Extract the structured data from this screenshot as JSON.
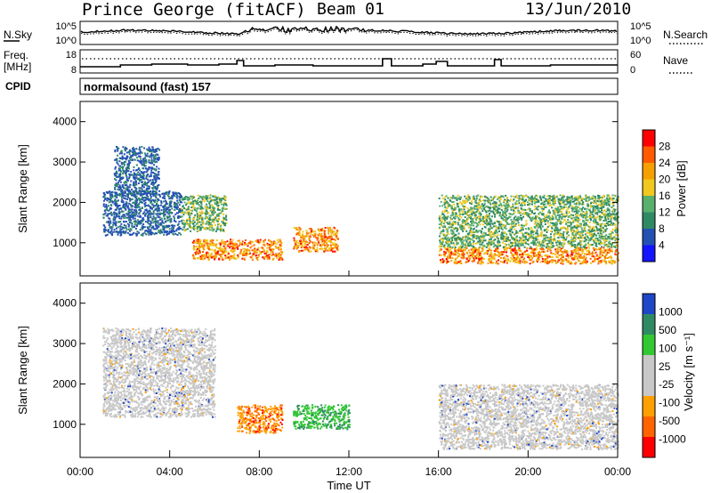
{
  "header": {
    "station": "Prince George (fitACF)",
    "beam": "Beam 01",
    "date": "13/Jun/2010"
  },
  "noise_panel": {
    "left_label": "N.Sky",
    "right_label": "N.Search",
    "left_ticks": [
      "10^5",
      "10^0"
    ],
    "right_ticks": [
      "10^5",
      "10^0"
    ]
  },
  "freq_panel": {
    "left_label_1": "Freq.",
    "left_label_2": "[MHz]",
    "right_label": "Nave",
    "left_ticks": [
      "18",
      "8"
    ],
    "right_ticks": [
      "60",
      "0"
    ]
  },
  "cpid_panel": {
    "label": "CPID",
    "text": "normalsound (fast) 157"
  },
  "colors": {
    "power_scale": [
      "#1414ff",
      "#2450b4",
      "#2f8a64",
      "#59b06e",
      "#f0c81e",
      "#f5a000",
      "#ff5a00",
      "#ff0000"
    ],
    "velocity_scale": [
      "#ff0000",
      "#ff6400",
      "#ffa000",
      "#c8c8c8",
      "#c8c8c8",
      "#32c832",
      "#2f8a64",
      "#1e46c8"
    ]
  },
  "chart_data": [
    {
      "type": "heatmap",
      "title": "Power",
      "ylabel": "Slant Range [km]",
      "ylim": [
        180,
        4500
      ],
      "yticks": [
        1000,
        2000,
        3000,
        4000
      ],
      "colorbar_label": "Power [dB]",
      "colorbar_ticks": [
        "28",
        "24",
        "20",
        "16",
        "12",
        "8",
        "4"
      ],
      "colorbar_range": [
        0,
        32
      ],
      "scatter_regions": [
        {
          "t": [
            1.0,
            4.5
          ],
          "r": [
            1200,
            2300
          ],
          "level": "low"
        },
        {
          "t": [
            1.5,
            3.5
          ],
          "r": [
            2200,
            3400
          ],
          "level": "low"
        },
        {
          "t": [
            4.5,
            6.5
          ],
          "r": [
            1300,
            2200
          ],
          "level": "mid"
        },
        {
          "t": [
            5.0,
            9.0
          ],
          "r": [
            600,
            1100
          ],
          "level": "high"
        },
        {
          "t": [
            9.5,
            11.5
          ],
          "r": [
            800,
            1400
          ],
          "level": "high"
        },
        {
          "t": [
            16.0,
            24.0
          ],
          "r": [
            500,
            900
          ],
          "level": "high"
        },
        {
          "t": [
            16.0,
            24.0
          ],
          "r": [
            900,
            2200
          ],
          "level": "mid"
        }
      ]
    },
    {
      "type": "heatmap",
      "title": "Velocity",
      "ylabel": "Slant Range [km]",
      "xlabel": "Time UT",
      "ylim": [
        180,
        4500
      ],
      "yticks": [
        1000,
        2000,
        3000,
        4000
      ],
      "xticks": [
        "00:00",
        "04:00",
        "08:00",
        "12:00",
        "16:00",
        "20:00",
        "00:00"
      ],
      "colorbar_label": "Velocity [m s⁻¹]",
      "colorbar_ticks": [
        "1000",
        "500",
        "100",
        "25",
        "-25",
        "-100",
        "-500",
        "-1000"
      ],
      "scatter_regions": [
        {
          "t": [
            1.0,
            6.0
          ],
          "r": [
            1200,
            3400
          ],
          "level": "ground"
        },
        {
          "t": [
            7.0,
            9.0
          ],
          "r": [
            800,
            1500
          ],
          "level": "away"
        },
        {
          "t": [
            9.5,
            12.0
          ],
          "r": [
            900,
            1500
          ],
          "level": "toward"
        },
        {
          "t": [
            16.0,
            24.0
          ],
          "r": [
            400,
            2000
          ],
          "level": "ground"
        }
      ]
    }
  ]
}
